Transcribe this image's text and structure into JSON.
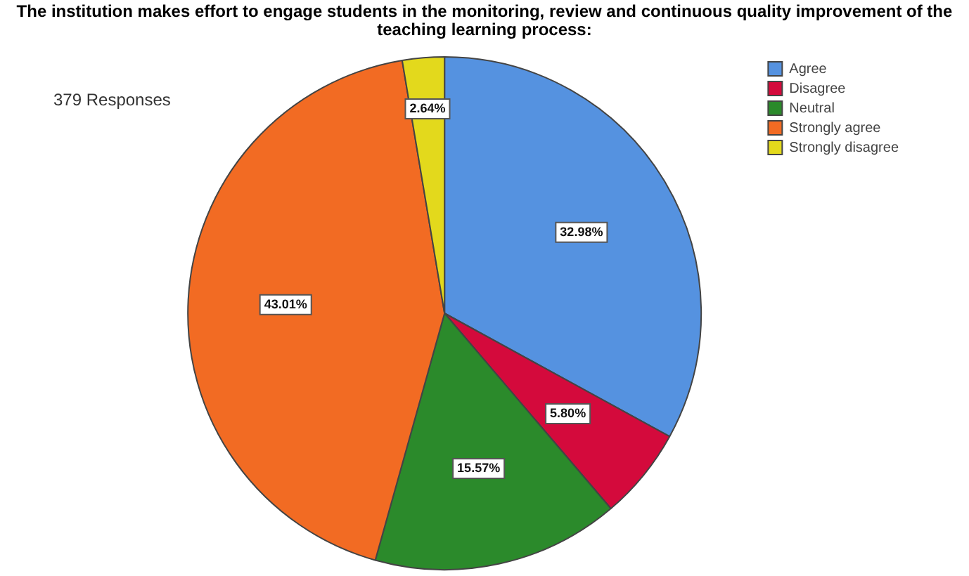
{
  "chart_data": {
    "type": "pie",
    "title": "The institution makes effort to engage students in the monitoring, review and continuous quality improvement of the teaching learning process:",
    "categories": [
      "Agree",
      "Disagree",
      "Neutral",
      "Strongly agree",
      "Strongly disagree"
    ],
    "values": [
      32.98,
      5.8,
      15.57,
      43.01,
      2.64
    ],
    "value_labels": [
      "32.98%",
      "5.80%",
      "15.57%",
      "43.01%",
      "2.64%"
    ],
    "colors": [
      "#5592e0",
      "#d40a3c",
      "#2b8a2b",
      "#f26b23",
      "#e3d91c"
    ],
    "legend": "top right",
    "annotations": [
      "379 Responses"
    ]
  }
}
